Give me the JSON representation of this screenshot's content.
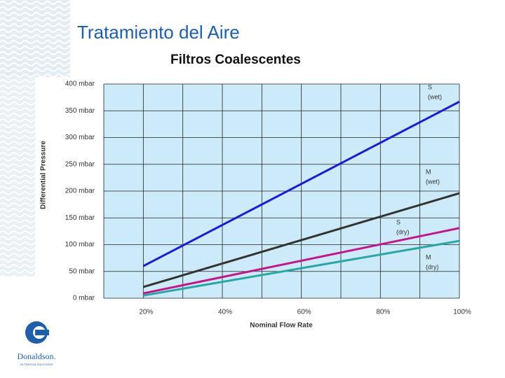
{
  "chart_data": {
    "type": "line",
    "title": "Tratamiento  del Aire",
    "subtitle": "Filtros Coalescentes",
    "y_label": "Differential Pressure",
    "x_label": "Nominal Flow Rate",
    "xlim": [
      10,
      100
    ],
    "xticks": [
      {
        "value": 20,
        "label": "20%"
      },
      {
        "value": 40,
        "label": "40%"
      },
      {
        "value": 60,
        "label": "60%"
      },
      {
        "value": 80,
        "label": "80%"
      },
      {
        "value": 100,
        "label": "100%"
      }
    ],
    "x_minor_grid": [
      10,
      30,
      50,
      70,
      90
    ],
    "ylim": [
      0,
      400
    ],
    "yticks": [
      {
        "value": 0,
        "label": "0 mbar"
      },
      {
        "value": 50,
        "label": "50 mbar"
      },
      {
        "value": 100,
        "label": "100 mbar"
      },
      {
        "value": 150,
        "label": "150 mbar"
      },
      {
        "value": 200,
        "label": "200 mbar"
      },
      {
        "value": 250,
        "label": "250 mbar"
      },
      {
        "value": 300,
        "label": "300 mbar"
      },
      {
        "value": 350,
        "label": "350 mbar"
      },
      {
        "value": 400,
        "label": "400 mbar"
      }
    ],
    "grid": true,
    "background": "#cdeaf8",
    "x": [
      20,
      100
    ],
    "series": [
      {
        "label": [
          "S",
          "(wet)"
        ],
        "color": "#1c1ccf",
        "values": [
          60,
          367
        ]
      },
      {
        "label": [
          "M",
          "(wet)"
        ],
        "color": "#333333",
        "values": [
          21,
          196
        ]
      },
      {
        "label": [
          "S",
          "(dry)"
        ],
        "color": "#c0188a",
        "values": [
          9,
          131
        ]
      },
      {
        "label": [
          "M",
          "(dry)"
        ],
        "color": "#2aa6a6",
        "values": [
          5,
          107
        ]
      }
    ]
  },
  "logo": {
    "name": "Donaldson.",
    "tagline": "FILTRATION SOLUTIONS"
  }
}
